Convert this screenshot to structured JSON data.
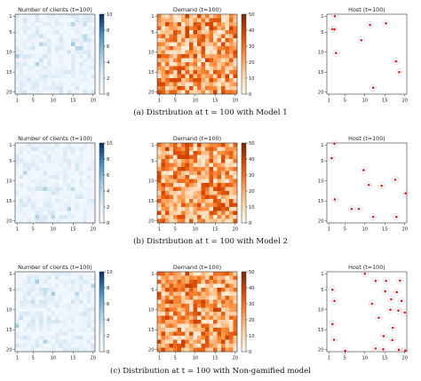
{
  "figure": {
    "captions": [
      "(a) Distribution at t = 100 with Model 1",
      "(b) Distribution at t = 100 with Model 2",
      "(c) Distribution at t = 100 with Non-gamified model"
    ]
  },
  "chart_data": [
    {
      "type": "heatmap",
      "title": "Number of clients (t=100)",
      "row": "Model 1",
      "colormap": "Blues",
      "grid": [
        20,
        20
      ],
      "xticks": [
        1,
        5,
        10,
        15,
        20
      ],
      "yticks": [
        1,
        5,
        10,
        15,
        20
      ],
      "colorbar_ticks": [
        0,
        2,
        4,
        6,
        8,
        10
      ],
      "clim": [
        0,
        10
      ],
      "cells_seed": 11
    },
    {
      "type": "heatmap",
      "title": "Demand (t=100)",
      "row": "Model 1",
      "colormap": "Oranges",
      "grid": [
        20,
        20
      ],
      "xticks": [
        1,
        5,
        10,
        15,
        20
      ],
      "yticks": [
        1,
        5,
        10,
        15,
        20
      ],
      "colorbar_ticks": [
        0,
        10,
        20,
        30,
        40,
        50
      ],
      "clim": [
        0,
        50
      ],
      "cells_seed": 21
    },
    {
      "type": "scatter",
      "title": "Host (t=100)",
      "row": "Model 1",
      "xticks": [
        1,
        5,
        10,
        15,
        20
      ],
      "yticks": [
        1,
        5,
        10,
        15,
        20
      ],
      "xlim": [
        0.5,
        20.5
      ],
      "ylim": [
        0.5,
        20.5
      ],
      "points": [
        {
          "x": 2.5,
          "y": 1.0
        },
        {
          "x": 1.8,
          "y": 4.2
        },
        {
          "x": 2.4,
          "y": 4.3
        },
        {
          "x": 2.8,
          "y": 10.2
        },
        {
          "x": 11.3,
          "y": 3.2
        },
        {
          "x": 15.3,
          "y": 2.8
        },
        {
          "x": 9.1,
          "y": 7.0
        },
        {
          "x": 17.8,
          "y": 12.3
        },
        {
          "x": 18.6,
          "y": 15.0
        },
        {
          "x": 12.1,
          "y": 18.9
        }
      ]
    },
    {
      "type": "heatmap",
      "title": "Number of clients (t=100)",
      "row": "Model 2",
      "colormap": "Blues",
      "grid": [
        20,
        20
      ],
      "xticks": [
        1,
        5,
        10,
        15,
        20
      ],
      "yticks": [
        1,
        5,
        10,
        15,
        20
      ],
      "colorbar_ticks": [
        0,
        2,
        4,
        6,
        8,
        10
      ],
      "clim": [
        0,
        10
      ],
      "cells_seed": 12
    },
    {
      "type": "heatmap",
      "title": "Demand (t=100)",
      "row": "Model 2",
      "colormap": "Oranges",
      "grid": [
        20,
        20
      ],
      "xticks": [
        1,
        5,
        10,
        15,
        20
      ],
      "yticks": [
        1,
        5,
        10,
        15,
        20
      ],
      "colorbar_ticks": [
        0,
        10,
        20,
        30,
        40,
        50
      ],
      "clim": [
        0,
        50
      ],
      "cells_seed": 22
    },
    {
      "type": "scatter",
      "title": "Host (t=100)",
      "row": "Model 2",
      "xticks": [
        1,
        5,
        10,
        15,
        20
      ],
      "yticks": [
        1,
        5,
        10,
        15,
        20
      ],
      "xlim": [
        0.5,
        20.5
      ],
      "ylim": [
        0.5,
        20.5
      ],
      "points": [
        {
          "x": 2.4,
          "y": 0.7
        },
        {
          "x": 1.7,
          "y": 4.3
        },
        {
          "x": 9.7,
          "y": 7.3
        },
        {
          "x": 11.0,
          "y": 11.0
        },
        {
          "x": 14.2,
          "y": 11.2
        },
        {
          "x": 17.6,
          "y": 9.7
        },
        {
          "x": 20.2,
          "y": 13.1
        },
        {
          "x": 2.5,
          "y": 14.6
        },
        {
          "x": 6.7,
          "y": 17.0
        },
        {
          "x": 8.5,
          "y": 17.0
        },
        {
          "x": 12.1,
          "y": 19.0
        },
        {
          "x": 17.9,
          "y": 19.0
        }
      ]
    },
    {
      "type": "heatmap",
      "title": "Number of clients (t=100)",
      "row": "Non-gamified model",
      "colormap": "Blues",
      "grid": [
        20,
        20
      ],
      "xticks": [
        1,
        5,
        10,
        15,
        20
      ],
      "yticks": [
        1,
        5,
        10,
        15,
        20
      ],
      "colorbar_ticks": [
        0,
        2,
        4,
        6,
        8,
        10
      ],
      "clim": [
        0,
        10
      ],
      "cells_seed": 13
    },
    {
      "type": "heatmap",
      "title": "Demand (t=100)",
      "row": "Non-gamified model",
      "colormap": "Oranges",
      "grid": [
        20,
        20
      ],
      "xticks": [
        1,
        5,
        10,
        15,
        20
      ],
      "yticks": [
        1,
        5,
        10,
        15,
        20
      ],
      "colorbar_ticks": [
        0,
        10,
        20,
        30,
        40,
        50
      ],
      "clim": [
        0,
        50
      ],
      "cells_seed": 23
    },
    {
      "type": "scatter",
      "title": "Host (t=100)",
      "row": "Non-gamified model",
      "xticks": [
        1,
        5,
        10,
        15,
        20
      ],
      "yticks": [
        1,
        5,
        10,
        15,
        20
      ],
      "xlim": [
        0.5,
        20.5
      ],
      "ylim": [
        0.5,
        20.5
      ],
      "points": [
        {
          "x": 10.0,
          "y": 1.0
        },
        {
          "x": 12.7,
          "y": 2.8
        },
        {
          "x": 15.3,
          "y": 2.8
        },
        {
          "x": 18.8,
          "y": 2.7
        },
        {
          "x": 1.9,
          "y": 5.0
        },
        {
          "x": 15.1,
          "y": 5.4
        },
        {
          "x": 18.0,
          "y": 5.6
        },
        {
          "x": 2.4,
          "y": 7.8
        },
        {
          "x": 11.8,
          "y": 8.5
        },
        {
          "x": 16.6,
          "y": 7.4
        },
        {
          "x": 19.2,
          "y": 7.8
        },
        {
          "x": 16.4,
          "y": 10.0
        },
        {
          "x": 18.4,
          "y": 10.2
        },
        {
          "x": 20.0,
          "y": 10.7
        },
        {
          "x": 13.5,
          "y": 12.0
        },
        {
          "x": 1.9,
          "y": 13.6
        },
        {
          "x": 17.0,
          "y": 14.5
        },
        {
          "x": 14.7,
          "y": 16.6
        },
        {
          "x": 2.3,
          "y": 17.5
        },
        {
          "x": 16.9,
          "y": 17.6
        },
        {
          "x": 5.1,
          "y": 20.3
        },
        {
          "x": 12.7,
          "y": 19.7
        },
        {
          "x": 14.6,
          "y": 19.9
        },
        {
          "x": 18.5,
          "y": 20.0
        },
        {
          "x": 20.1,
          "y": 20.2
        }
      ]
    }
  ]
}
